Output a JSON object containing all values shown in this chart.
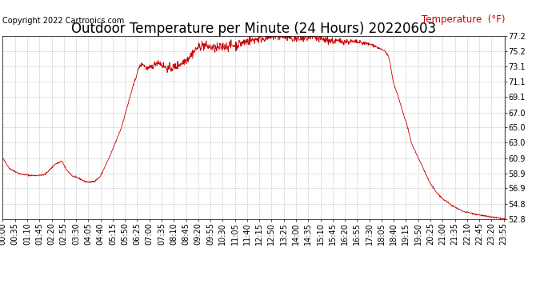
{
  "title": "Outdoor Temperature per Minute (24 Hours) 20220603",
  "copyright_text": "Copyright 2022 Cartronics.com",
  "legend_label": "Temperature  (°F)",
  "line_color": "#cc0000",
  "legend_color": "#cc0000",
  "copyright_color": "#000000",
  "background_color": "#ffffff",
  "grid_color": "#bbbbbb",
  "title_fontsize": 12,
  "axis_fontsize": 7,
  "copyright_fontsize": 7,
  "legend_fontsize": 8.5,
  "ytick_labels": [
    "52.8",
    "54.8",
    "56.9",
    "58.9",
    "60.9",
    "63.0",
    "65.0",
    "67.0",
    "69.1",
    "71.1",
    "73.1",
    "75.2",
    "77.2"
  ],
  "ytick_values": [
    52.8,
    54.8,
    56.9,
    58.9,
    60.9,
    63.0,
    65.0,
    67.0,
    69.1,
    71.1,
    73.1,
    75.2,
    77.2
  ],
  "ymin": 52.8,
  "ymax": 77.2,
  "total_minutes": 1440,
  "figsize": [
    6.9,
    3.75
  ],
  "dpi": 100
}
